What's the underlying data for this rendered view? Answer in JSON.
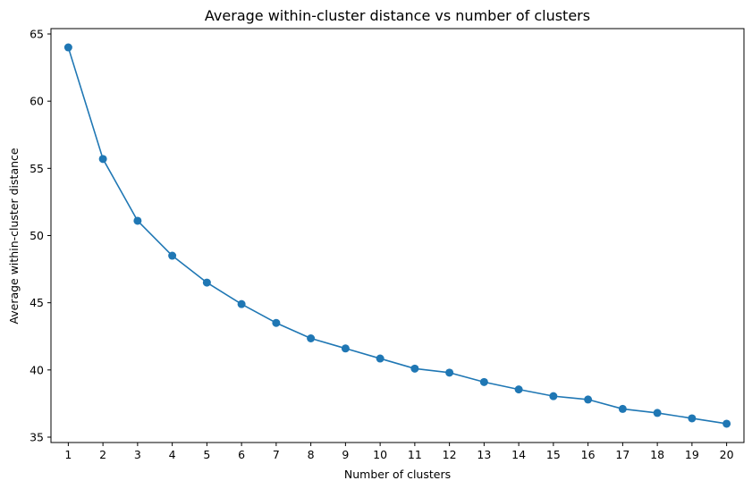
{
  "chart_data": {
    "type": "line",
    "title": "Average within-cluster distance vs number of clusters",
    "xlabel": "Number of clusters",
    "ylabel": "Average within-cluster distance",
    "x": [
      1,
      2,
      3,
      4,
      5,
      6,
      7,
      8,
      9,
      10,
      11,
      12,
      13,
      14,
      15,
      16,
      17,
      18,
      19,
      20
    ],
    "series": [
      {
        "values": [
          64.0,
          55.7,
          51.1,
          48.5,
          46.5,
          44.9,
          43.5,
          42.35,
          41.6,
          40.85,
          40.1,
          39.8,
          39.1,
          38.55,
          38.05,
          37.8,
          37.1,
          36.8,
          36.4,
          36.0
        ],
        "color": "#1f77b4",
        "marker": "circle"
      }
    ],
    "xticks": [
      1,
      2,
      3,
      4,
      5,
      6,
      7,
      8,
      9,
      10,
      11,
      12,
      13,
      14,
      15,
      16,
      17,
      18,
      19,
      20
    ],
    "yticks": [
      35,
      40,
      45,
      50,
      55,
      60,
      65
    ],
    "xlim": [
      0.5,
      20.5
    ],
    "ylim": [
      34.6,
      65.4
    ],
    "grid": false,
    "legend": "none"
  }
}
